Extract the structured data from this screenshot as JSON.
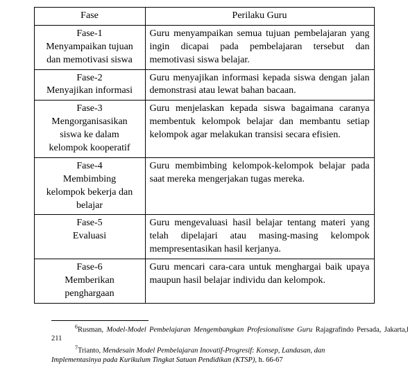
{
  "table": {
    "headers": {
      "fase": "Fase",
      "perilaku": "Perilaku Guru"
    },
    "rows": [
      {
        "fase_line1": "Fase-1",
        "fase_line2": "Menyampaikan tujuan",
        "fase_line3": "dan memotivasi siswa",
        "perilaku": "Guru menyampaikan semua tujuan pembelajaran yang ingin dicapai pada pembelajaran tersebut dan memotivasi siswa belajar."
      },
      {
        "fase_line1": "Fase-2",
        "fase_line2": "Menyajikan informasi",
        "fase_line3": "",
        "perilaku": "Guru menyajikan informasi kepada siswa dengan jalan demonstrasi atau lewat bahan bacaan."
      },
      {
        "fase_line1": "Fase-3",
        "fase_line2": "Mengorganisasikan",
        "fase_line3": "siswa ke dalam",
        "fase_line4": "kelompok kooperatif",
        "perilaku": "Guru menjelaskan kepada siswa bagaimana caranya membentuk kelompok belajar dan membantu setiap kelompok agar melakukan transisi secara efisien."
      },
      {
        "fase_line1": "Fase-4",
        "fase_line2": "Membimbing",
        "fase_line3": "kelompok bekerja dan",
        "fase_line4": "belajar",
        "perilaku": "Guru membimbing kelompok-kelompok belajar pada saat mereka mengerjakan tugas mereka."
      },
      {
        "fase_line1": "Fase-5",
        "fase_line2": "Evaluasi",
        "fase_line3": "",
        "perilaku": "Guru mengevaluasi hasil belajar tentang materi yang telah dipelajari atau masing-masing kelompok mempresentasikan hasil kerjanya."
      },
      {
        "fase_line1": "Fase-6",
        "fase_line2": "Memberikan",
        "fase_line3": "penghargaan",
        "perilaku": "Guru mencari cara-cara untuk menghargai baik upaya maupun hasil belajar individu dan kelompok."
      }
    ]
  },
  "footnotes": {
    "fn6_num": "6",
    "fn6_author": "Rusman, ",
    "fn6_title_ital": "Model-Model Pembelajaran Mengembangkan Profesionalisme Guru",
    "fn6_tail": " Rajagrafindo Persada, Jakarta,h. 211",
    "fn7_num": "7",
    "fn7_author": "Trianto, ",
    "fn7_title_ital": "Mendesain Model Pembelajaran Inovatif-Progresif: Konsep, Landasan, dan",
    "fn7_line2_ital": "Implementasinya pada Kurikulum Tingkat Satuan Pendidikan (KTSP),",
    "fn7_tail": " h. 66-67"
  }
}
